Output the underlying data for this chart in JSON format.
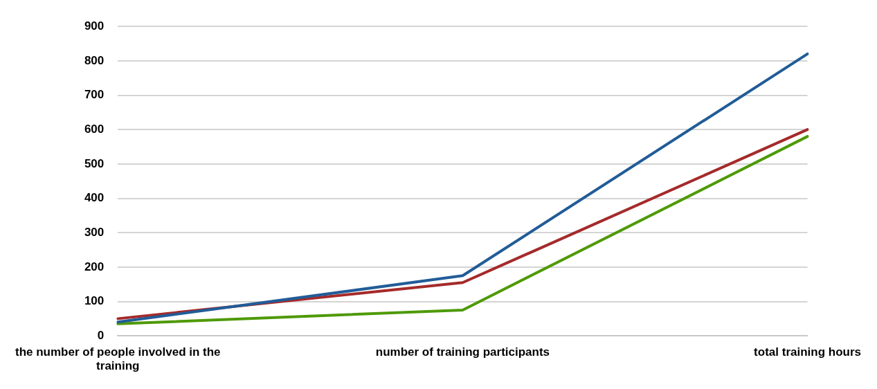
{
  "chart_data": {
    "type": "line",
    "categories": [
      "the number of people involved in the training",
      "number of training participants",
      "total training hours"
    ],
    "series": [
      {
        "color": "#215c98",
        "values": [
          40,
          175,
          820
        ]
      },
      {
        "color": "#a52a2a",
        "values": [
          50,
          155,
          600
        ]
      },
      {
        "color": "#4e9a06",
        "values": [
          35,
          75,
          580
        ]
      }
    ],
    "ylim": [
      0,
      900
    ],
    "yticks": [
      0,
      100,
      200,
      300,
      400,
      500,
      600,
      700,
      800,
      900
    ],
    "grid": "y",
    "legend": false,
    "marker": "none",
    "line_style": "solid"
  }
}
